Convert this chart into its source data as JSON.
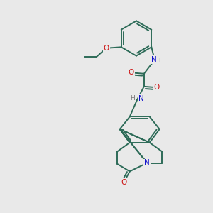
{
  "bg": "#e9e9e9",
  "bc": "#2d6b58",
  "nc": "#1111cc",
  "oc": "#cc1111",
  "hc": "#777777",
  "bw": 1.4,
  "fs": 7.5,
  "xlim": [
    0,
    10
  ],
  "ylim": [
    0,
    10
  ],
  "figsize": [
    3.0,
    3.0
  ],
  "dpi": 100
}
